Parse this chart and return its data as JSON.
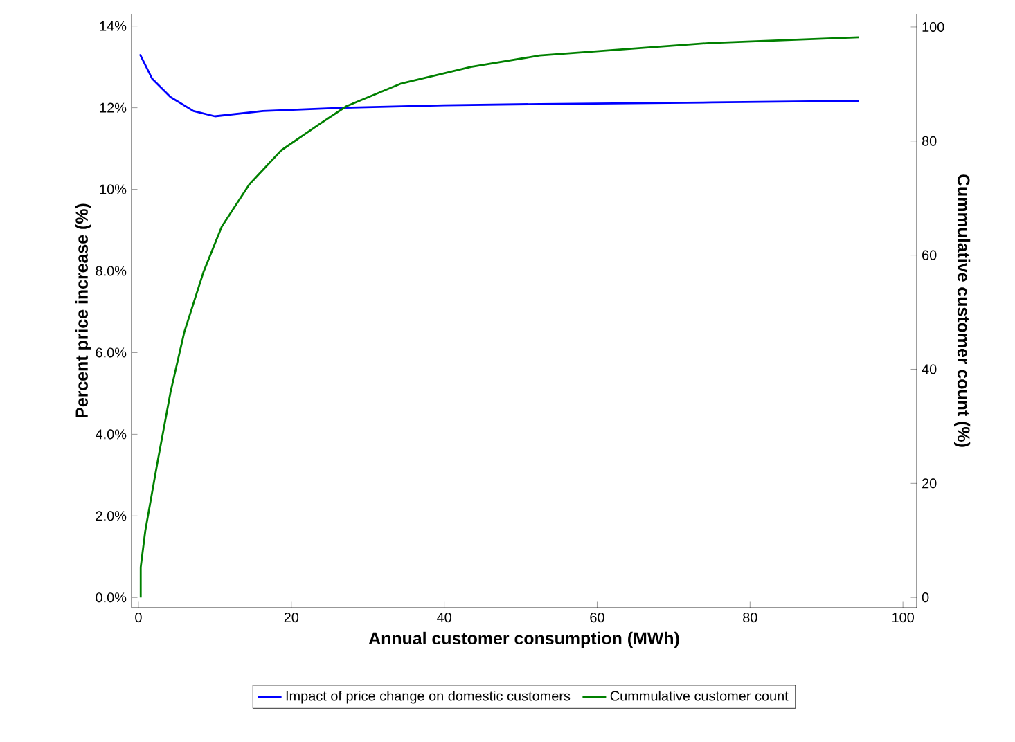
{
  "chart_data": {
    "type": "line",
    "xlabel": "Annual customer consumption (MWh)",
    "ylabel": "Percent price increase (%)",
    "y2label": "Cummulative customer count (%)",
    "xlim": [
      -0.9,
      101.8
    ],
    "xticks": [
      0,
      20,
      40,
      60,
      80,
      100
    ],
    "ylim": [
      -0.25,
      14.3
    ],
    "yticks": [
      {
        "value": 0,
        "label": "0.0%"
      },
      {
        "value": 2,
        "label": "2.0%"
      },
      {
        "value": 4,
        "label": "4.0%"
      },
      {
        "value": 6,
        "label": "6.0%"
      },
      {
        "value": 8,
        "label": "8.0%"
      },
      {
        "value": 10,
        "label": "10%"
      },
      {
        "value": 12,
        "label": "12%"
      },
      {
        "value": 14,
        "label": "14%"
      }
    ],
    "y2lim": [
      -1.8,
      102.3
    ],
    "y2ticks": [
      0,
      20,
      40,
      60,
      80,
      100
    ],
    "legend": "bottom",
    "marker": "none",
    "line_style": "solid",
    "series": [
      {
        "name": "Impact of price change on domestic customers",
        "color": "#0000ff",
        "axis": "y",
        "x": [
          0.2,
          1.8,
          4.2,
          7.2,
          10.0,
          16.3,
          26.9,
          40,
          52.5,
          75,
          94.2
        ],
        "values": [
          13.31,
          12.71,
          12.26,
          11.92,
          11.79,
          11.92,
          12.0,
          12.06,
          12.09,
          12.13,
          12.17
        ]
      },
      {
        "name": "Cummulative customer count",
        "color": "#008000",
        "axis": "y2",
        "x": [
          0.3,
          0.3,
          0.9,
          2.4,
          4.2,
          6.0,
          8.5,
          10.9,
          14.5,
          18.7,
          23.6,
          27.2,
          34.4,
          43.5,
          52.5,
          74.9,
          94.2
        ],
        "values": [
          0,
          5.3,
          11.7,
          23,
          36,
          46.5,
          57,
          65,
          72.4,
          78.4,
          82.9,
          86.1,
          90.1,
          93,
          95,
          97.2,
          98.2
        ]
      }
    ]
  }
}
